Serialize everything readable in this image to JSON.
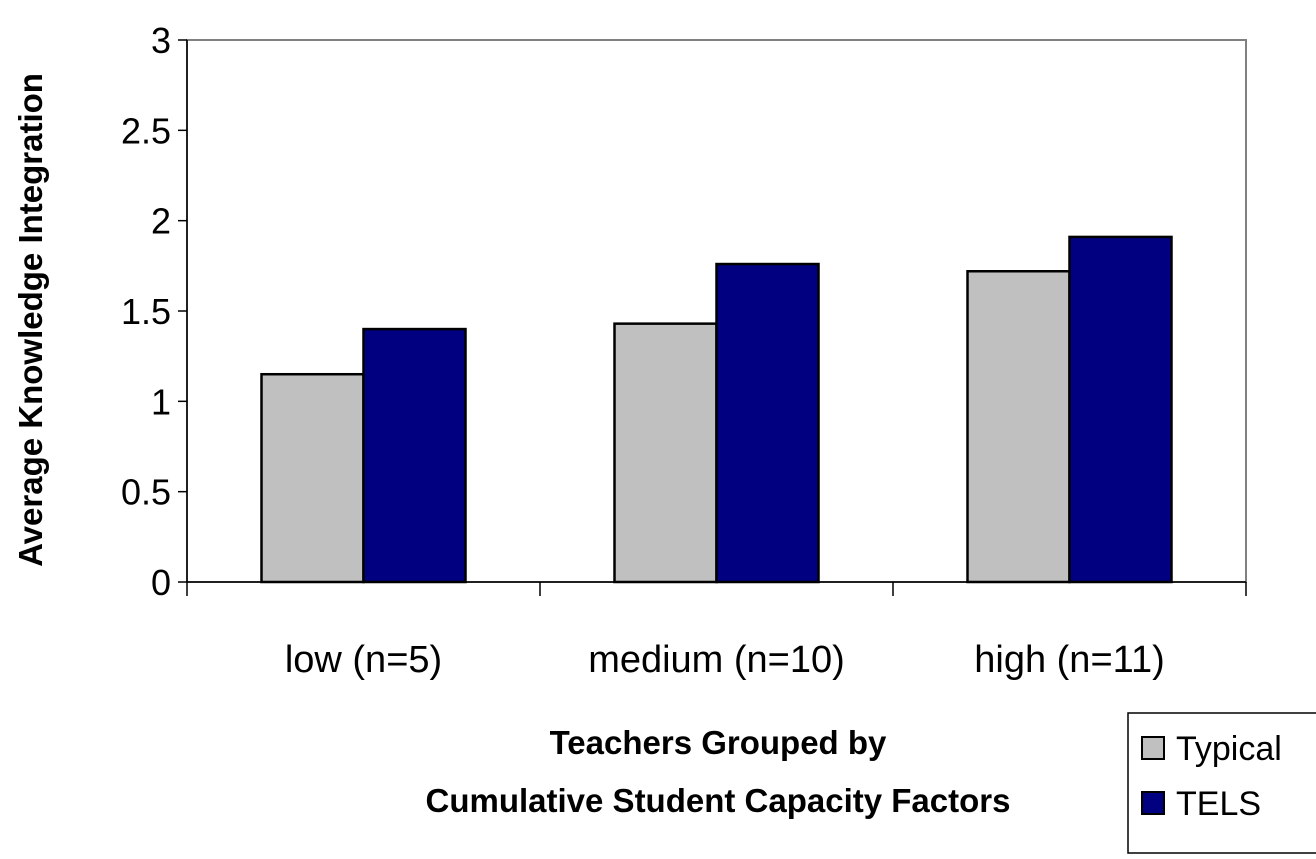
{
  "chart_data": {
    "type": "bar",
    "categories": [
      "low (n=5)",
      "medium (n=10)",
      "high (n=11)"
    ],
    "series": [
      {
        "name": "Typical",
        "values": [
          1.15,
          1.43,
          1.72
        ],
        "color": "#c0c0c0"
      },
      {
        "name": "TELS",
        "values": [
          1.4,
          1.76,
          1.91
        ],
        "color": "#000080"
      }
    ],
    "ylabel": "Average Knowledge Integration",
    "xlabel_lines": [
      "Teachers Grouped by",
      "Cumulative Student Capacity Factors"
    ],
    "ylim": [
      0,
      3
    ],
    "yticks": [
      "0",
      "0.5",
      "1",
      "1.5",
      "2",
      "2.5",
      "3"
    ],
    "grid": false,
    "legend_position": "bottom-right"
  }
}
